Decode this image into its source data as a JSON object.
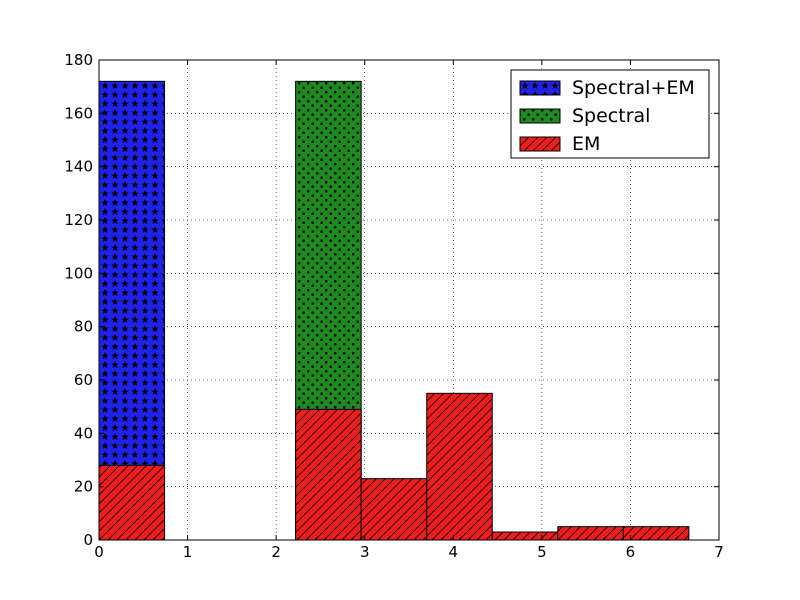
{
  "chart_data": {
    "type": "bar",
    "xlim": [
      0,
      7
    ],
    "ylim": [
      0,
      180
    ],
    "xticks": [
      0,
      1,
      2,
      3,
      4,
      5,
      6,
      7
    ],
    "yticks": [
      0,
      20,
      40,
      60,
      80,
      100,
      120,
      140,
      160,
      180
    ],
    "grid": true,
    "legend_position": "top-right",
    "bins": [
      [
        0.0,
        0.74
      ],
      [
        0.74,
        1.48
      ],
      [
        1.48,
        2.22
      ],
      [
        2.22,
        2.96
      ],
      [
        2.96,
        3.7
      ],
      [
        3.7,
        4.44
      ],
      [
        4.44,
        5.18
      ],
      [
        5.18,
        5.92
      ],
      [
        5.92,
        6.66
      ]
    ],
    "series": [
      {
        "name": "Spectral+EM",
        "color": "#1f22e8",
        "hatch": "stars",
        "values": [
          172,
          0,
          0,
          0,
          0,
          0,
          0,
          0,
          0
        ]
      },
      {
        "name": "Spectral",
        "color": "#1e8b1e",
        "hatch": "dots",
        "values": [
          0,
          0,
          0,
          172,
          0,
          0,
          0,
          0,
          0
        ]
      },
      {
        "name": "EM",
        "color": "#f01d1d",
        "hatch": "diagonal",
        "values": [
          28,
          0,
          0,
          49,
          23,
          55,
          3,
          5,
          5
        ]
      }
    ]
  }
}
